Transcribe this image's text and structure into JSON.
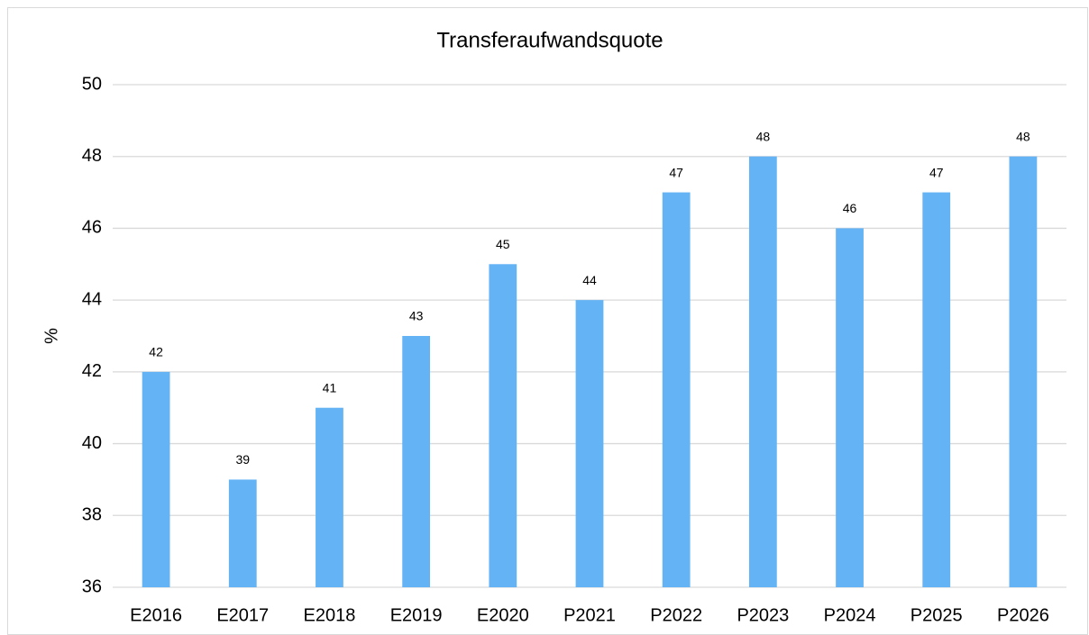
{
  "chart_data": {
    "type": "bar",
    "title": "Transferaufwandsquote",
    "y_label": "%",
    "categories": [
      "E2016",
      "E2017",
      "E2018",
      "E2019",
      "E2020",
      "P2021",
      "P2022",
      "P2023",
      "P2024",
      "P2025",
      "P2026"
    ],
    "values": [
      42,
      39,
      41,
      43,
      45,
      44,
      47,
      48,
      46,
      47,
      48
    ],
    "color": "#63b3f5",
    "ylim": [
      36,
      50
    ],
    "yticks": [
      36,
      38,
      40,
      42,
      44,
      46,
      48,
      50
    ],
    "grid": true
  }
}
